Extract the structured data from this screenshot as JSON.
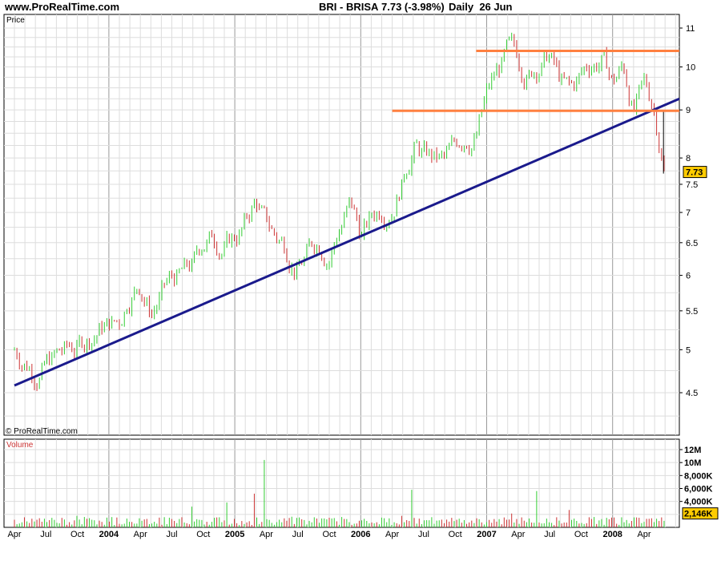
{
  "header": {
    "site": "www.ProRealTime.com",
    "symbol": "BRI - BRISA",
    "quote": "7.73 (-3.98%)",
    "period": "Daily",
    "date": "26 Jun"
  },
  "chart_data": [
    {
      "type": "line",
      "name": "price",
      "label": "Price",
      "copyright": "© ProRealTime.com",
      "scale": "log",
      "ylim": [
        4.0,
        11.5
      ],
      "yticks": [
        "11",
        "10",
        "9",
        "8",
        "7.5",
        "7",
        "6.5",
        "6",
        "5.5",
        "5",
        "4.5"
      ],
      "xticks": [
        "Apr",
        "Jul",
        "Oct",
        "2004",
        "Apr",
        "Jul",
        "Oct",
        "2005",
        "Apr",
        "Jul",
        "Oct",
        "2006",
        "Apr",
        "Jul",
        "Oct",
        "2007",
        "Apr",
        "Jul",
        "Oct",
        "2008",
        "Apr"
      ],
      "last_price": "7.73",
      "series": [
        {
          "x": [
            "2003-04",
            "2003-06",
            "2003-08",
            "2003-10",
            "2003-12",
            "2004-02",
            "2004-03",
            "2004-04",
            "2004-05",
            "2004-06",
            "2004-07",
            "2004-09",
            "2004-10",
            "2004-11",
            "2004-12",
            "2005-01",
            "2005-02",
            "2005-03",
            "2005-04",
            "2005-05",
            "2005-06",
            "2005-07",
            "2005-08",
            "2005-09",
            "2005-10",
            "2005-11",
            "2005-12",
            "2006-01",
            "2006-02",
            "2006-03",
            "2006-04",
            "2006-05",
            "2006-06",
            "2006-07",
            "2006-08",
            "2006-09",
            "2006-10",
            "2006-11",
            "2006-12",
            "2007-01",
            "2007-02",
            "2007-03",
            "2007-04",
            "2007-05",
            "2007-06",
            "2007-07",
            "2007-08",
            "2007-09",
            "2007-10",
            "2007-11",
            "2007-12",
            "2008-01",
            "2008-02",
            "2008-03",
            "2008-04",
            "2008-05",
            "2008-06"
          ],
          "y": [
            5.0,
            4.82,
            4.92,
            5.0,
            5.3,
            5.35,
            5.8,
            5.95,
            5.55,
            5.75,
            5.9,
            6.05,
            6.5,
            6.6,
            6.5,
            6.6,
            6.8,
            7.2,
            6.75,
            6.55,
            6.45,
            6.2,
            6.35,
            6.55,
            6.45,
            6.85,
            7.15,
            6.6,
            6.85,
            7.1,
            7.3,
            7.75,
            8.4,
            8.1,
            7.95,
            7.85,
            8.1,
            8.5,
            8.55,
            9.3,
            9.8,
            10.25,
            10.0,
            9.85,
            10.2,
            10.3,
            9.6,
            9.3,
            9.7,
            10.1,
            10.25,
            9.6,
            10.0,
            9.05,
            9.4,
            9.0,
            7.73
          ]
        }
      ],
      "support_trendline": {
        "from": {
          "x": "2003-04",
          "y": 4.58
        },
        "to": {
          "x": "2008-06",
          "y": 9.25
        },
        "color": "#1a1a8c"
      },
      "horizontal_levels": [
        {
          "y": 10.4,
          "from": "2006-12",
          "color": "#ff8040"
        },
        {
          "y": 8.98,
          "from": "2006-04",
          "color": "#ff8040"
        }
      ],
      "colors": {
        "up": "#33cc33",
        "down": "#cc3333",
        "grid": "#dddddd",
        "major_grid": "#999999",
        "last_price_bg": "#ffcc00"
      }
    },
    {
      "type": "bar",
      "name": "volume",
      "label": "Volume",
      "ylim": [
        0,
        12000
      ],
      "yticks": [
        "12M",
        "10M",
        "8,000K",
        "6,000K",
        "4,000K",
        "2,146K"
      ],
      "last_volume": "2,146K",
      "volume_unit": "K shares",
      "typical_level": 1400,
      "spikes": [
        {
          "x": "2004-09",
          "value": 3200
        },
        {
          "x": "2005-03",
          "value": 5200
        },
        {
          "x": "2005-04",
          "value": 10400
        },
        {
          "x": "2006-06",
          "value": 5800
        },
        {
          "x": "2007-06",
          "value": 5600
        }
      ]
    }
  ]
}
